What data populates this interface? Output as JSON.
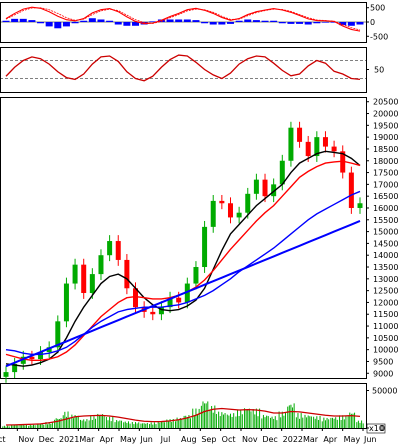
{
  "chart_data": [
    {
      "type": "line",
      "panel": "macd",
      "ylim": [
        -700,
        700
      ],
      "y_ticks": [
        "500",
        "0",
        "-500"
      ],
      "zero_line": true,
      "histogram_colors": {
        "positive": "#0000ff",
        "negative": "#0000ff"
      },
      "line_color": "#ff0000",
      "signal_color": "#ff0000",
      "series": [
        {
          "id": "macd",
          "values": [
            120,
            300,
            450,
            520,
            480,
            360,
            200,
            80,
            40,
            120,
            320,
            430,
            470,
            360,
            180,
            20,
            -60,
            -40,
            60,
            190,
            300,
            430,
            480,
            410,
            300,
            160,
            60,
            120,
            260,
            360,
            420,
            470,
            420,
            340,
            230,
            110,
            50,
            40,
            20,
            -140,
            -260,
            -320
          ]
        },
        {
          "id": "signal",
          "values": [
            100,
            250,
            400,
            490,
            500,
            430,
            300,
            150,
            60,
            100,
            260,
            390,
            450,
            400,
            240,
            80,
            -20,
            -50,
            20,
            150,
            260,
            390,
            450,
            430,
            340,
            200,
            90,
            100,
            220,
            330,
            400,
            450,
            440,
            370,
            260,
            150,
            70,
            50,
            30,
            -90,
            -200,
            -280
          ]
        },
        {
          "id": "hist",
          "values": [
            20,
            50,
            50,
            30,
            -20,
            -70,
            -100,
            -70,
            -20,
            20,
            60,
            40,
            20,
            -40,
            -60,
            -60,
            -40,
            10,
            40,
            40,
            40,
            40,
            30,
            -20,
            -40,
            -40,
            -30,
            20,
            40,
            30,
            20,
            20,
            -20,
            -30,
            -30,
            -40,
            -20,
            -10,
            -10,
            -50,
            -60,
            -40
          ]
        }
      ]
    },
    {
      "type": "line",
      "panel": "rsi",
      "ylim": [
        0,
        100
      ],
      "y_ticks": [
        "50"
      ],
      "ref_lines": [
        30,
        70
      ],
      "series": [
        {
          "id": "rsi",
          "color": "#cc0000",
          "values": [
            35,
            55,
            70,
            78,
            74,
            62,
            45,
            32,
            28,
            40,
            62,
            78,
            80,
            68,
            45,
            30,
            25,
            35,
            55,
            72,
            82,
            80,
            66,
            50,
            38,
            30,
            42,
            62,
            74,
            80,
            78,
            64,
            48,
            36,
            40,
            58,
            70,
            64,
            46,
            40,
            30,
            28
          ]
        }
      ]
    },
    {
      "type": "line",
      "panel": "price",
      "ylim": [
        8800,
        20700
      ],
      "y_ticks": [
        "20500",
        "20000",
        "19500",
        "19000",
        "18500",
        "18000",
        "17500",
        "17000",
        "16500",
        "16000",
        "15500",
        "15000",
        "14500",
        "14000",
        "13500",
        "13000",
        "12500",
        "12000",
        "11500",
        "11000",
        "10500",
        "10000",
        "9500",
        "9000"
      ],
      "x_ticks": [
        "ct",
        "Nov",
        "Dec",
        "2021",
        "Mar",
        "Apr",
        "May",
        "Jun",
        "Jul",
        "Aug",
        "Sep",
        "Oct",
        "Nov",
        "Dec",
        "2022",
        "Mar",
        "Apr",
        "May",
        "Jun"
      ],
      "candle_colors": {
        "up": "#00aa00",
        "down": "#ff0000"
      },
      "closes": [
        9050,
        9400,
        9700,
        9600,
        9900,
        10100,
        11200,
        12800,
        13600,
        12400,
        13200,
        14000,
        14600,
        13800,
        12600,
        11800,
        11600,
        11500,
        11800,
        12200,
        12000,
        12800,
        13500,
        15200,
        16300,
        16200,
        15600,
        15800,
        16600,
        17200,
        16500,
        17000,
        18000,
        19400,
        18800,
        18200,
        19000,
        18600,
        18400,
        17500,
        16000,
        16200
      ],
      "series": [
        {
          "id": "ma-short",
          "color": "#000000",
          "values": [
            9400,
            9350,
            9300,
            9350,
            9450,
            9600,
            9900,
            10500,
            11200,
            11800,
            12300,
            12800,
            13100,
            13200,
            13000,
            12600,
            12200,
            11900,
            11700,
            11650,
            11700,
            11850,
            12100,
            12600,
            13400,
            14200,
            14900,
            15300,
            15700,
            16100,
            16400,
            16700,
            17000,
            17500,
            17900,
            18100,
            18300,
            18400,
            18350,
            18300,
            18100,
            17800
          ]
        },
        {
          "id": "ma-mid",
          "color": "#ff0000",
          "values": [
            9800,
            9700,
            9600,
            9550,
            9550,
            9600,
            9700,
            9900,
            10200,
            10600,
            11000,
            11400,
            11700,
            12000,
            12200,
            12250,
            12200,
            12150,
            12150,
            12200,
            12300,
            12450,
            12650,
            12950,
            13350,
            13800,
            14250,
            14650,
            15050,
            15450,
            15800,
            16100,
            16500,
            16900,
            17300,
            17550,
            17750,
            17900,
            17950,
            17980,
            17900,
            17800
          ]
        },
        {
          "id": "ma-long",
          "color": "#0000ff",
          "values": [
            10000,
            9950,
            9850,
            9800,
            9800,
            9850,
            9950,
            10100,
            10350,
            10650,
            10950,
            11200,
            11400,
            11600,
            11700,
            11750,
            11800,
            11800,
            11800,
            11850,
            11900,
            12000,
            12150,
            12300,
            12500,
            12750,
            13000,
            13300,
            13550,
            13800,
            14050,
            14300,
            14600,
            14900,
            15200,
            15500,
            15750,
            15950,
            16150,
            16350,
            16550,
            16700
          ]
        },
        {
          "id": "trendline",
          "color": "#0000ff",
          "values": [
            9300,
            9450,
            9600,
            9750,
            9900,
            10050,
            10200,
            10350,
            10500,
            10650,
            10800,
            10950,
            11100,
            11250,
            11400,
            11550,
            11700,
            11850,
            12000,
            12150,
            12300,
            12450,
            12600,
            12750,
            12900,
            13050,
            13200,
            13350,
            13500,
            13650,
            13800,
            13950,
            14100,
            14250,
            14400,
            14550,
            14700,
            14850,
            15000,
            15150,
            15300,
            15450
          ]
        }
      ]
    },
    {
      "type": "bar",
      "panel": "volume",
      "ylim": [
        0,
        60000
      ],
      "y_ticks": [
        "50000",
        "0"
      ],
      "bar_color": "#00aa00",
      "ma_color": "#cc0000",
      "unit_label": "x10",
      "values": [
        3000,
        4000,
        5000,
        4500,
        6000,
        8000,
        14000,
        22000,
        18000,
        12000,
        16000,
        20000,
        15000,
        11000,
        9000,
        8000,
        7000,
        7500,
        9000,
        12000,
        14000,
        18000,
        26000,
        38000,
        30000,
        22000,
        20000,
        24000,
        28000,
        26000,
        18000,
        16000,
        22000,
        34000,
        20000,
        18000,
        16000,
        14000,
        15000,
        17000,
        22000,
        10000
      ],
      "ma_values": [
        4000,
        4200,
        4600,
        5000,
        5500,
        7000,
        9000,
        12000,
        15000,
        16000,
        16500,
        16800,
        16000,
        14500,
        12500,
        10500,
        9000,
        8500,
        8600,
        9500,
        11000,
        13500,
        17000,
        22000,
        25000,
        26000,
        25000,
        24000,
        24500,
        24000,
        22500,
        20000,
        20000,
        22000,
        21500,
        20000,
        18500,
        17000,
        16000,
        16000,
        16500,
        15500
      ]
    }
  ]
}
